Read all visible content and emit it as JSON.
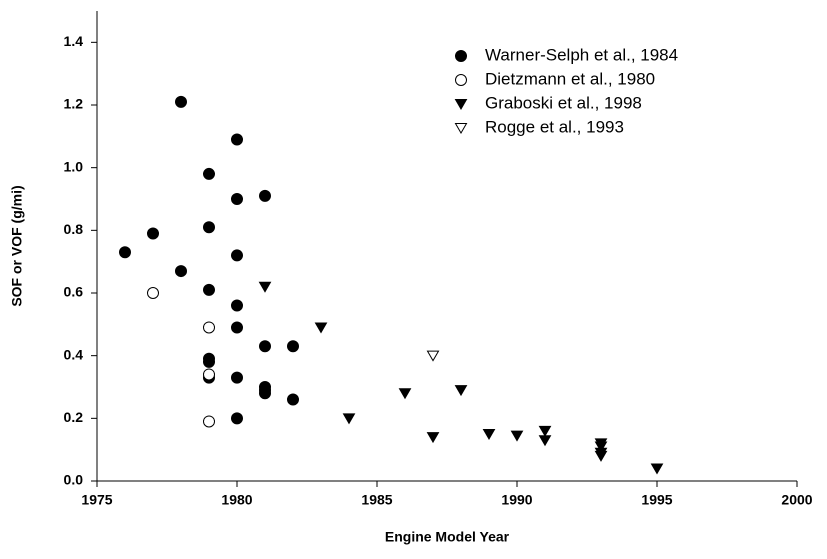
{
  "chart_data": {
    "type": "scatter",
    "xlabel": "Engine Model Year",
    "ylabel": "SOF or VOF (g/mi)",
    "xlim": [
      1975,
      2000
    ],
    "xticks": [
      1975,
      1980,
      1985,
      1990,
      1995,
      2000
    ],
    "ylim": [
      0,
      1.5
    ],
    "yticks": [
      {
        "value": 0,
        "label": "0.0"
      },
      0.2,
      0.4,
      0.6,
      0.8,
      {
        "value": 1,
        "label": "1.0"
      },
      1.2,
      1.4
    ],
    "legend": "upper right",
    "series": [
      {
        "name": "Warner-Selph et al., 1984",
        "color": "#000000",
        "marker": "circle",
        "filled": true,
        "x": [
          1976,
          1977,
          1978,
          1978,
          1979,
          1979,
          1979,
          1979,
          1979,
          1979,
          1980,
          1980,
          1980,
          1980,
          1980,
          1980,
          1980,
          1981,
          1981,
          1981,
          1981,
          1981,
          1982,
          1982
        ],
        "values": [
          0.73,
          0.79,
          1.21,
          0.67,
          0.98,
          0.81,
          0.61,
          0.39,
          0.38,
          0.33,
          1.09,
          0.9,
          0.72,
          0.56,
          0.49,
          0.33,
          0.2,
          0.91,
          0.43,
          0.3,
          0.29,
          0.28,
          0.43,
          0.26
        ]
      },
      {
        "name": "Dietzmann et al., 1980",
        "color": "#000000",
        "marker": "circle",
        "filled": false,
        "x": [
          1977,
          1979,
          1979,
          1979
        ],
        "values": [
          0.6,
          0.49,
          0.34,
          0.19
        ]
      },
      {
        "name": "Graboski et al., 1998",
        "color": "#000000",
        "marker": "triangle-down",
        "filled": true,
        "x": [
          1981,
          1983,
          1984,
          1986,
          1987,
          1988,
          1989,
          1990,
          1991,
          1991,
          1993,
          1993,
          1993,
          1993,
          1995
        ],
        "values": [
          0.62,
          0.49,
          0.2,
          0.28,
          0.14,
          0.29,
          0.15,
          0.145,
          0.16,
          0.13,
          0.12,
          0.11,
          0.09,
          0.08,
          0.04
        ]
      },
      {
        "name": "Rogge et al., 1993",
        "color": "#000000",
        "marker": "triangle-down",
        "filled": false,
        "x": [
          1987
        ],
        "values": [
          0.4
        ]
      }
    ]
  }
}
